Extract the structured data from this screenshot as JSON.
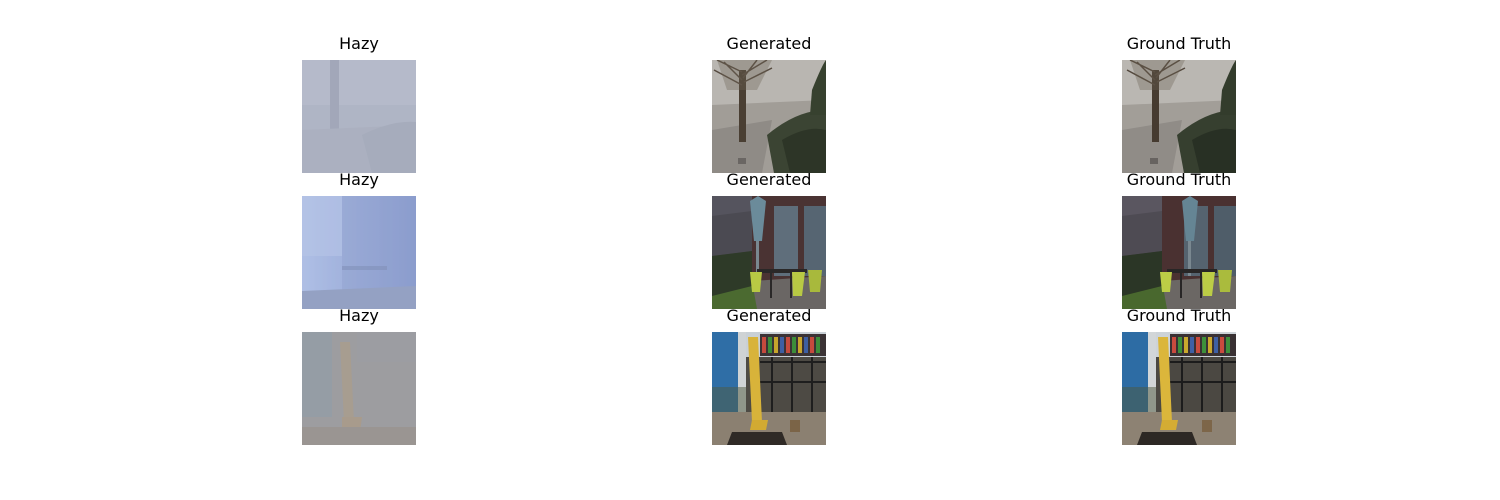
{
  "columns": [
    "Hazy",
    "Generated",
    "Ground Truth"
  ],
  "rows": [
    {
      "scene": "tree-courtyard",
      "panels": [
        {
          "title": "Hazy",
          "variant": "hazy"
        },
        {
          "title": "Generated",
          "variant": "clear"
        },
        {
          "title": "Ground Truth",
          "variant": "clear"
        }
      ]
    },
    {
      "scene": "patio-table",
      "panels": [
        {
          "title": "Hazy",
          "variant": "hazy"
        },
        {
          "title": "Generated",
          "variant": "clear"
        },
        {
          "title": "Ground Truth",
          "variant": "clear"
        }
      ]
    },
    {
      "scene": "playground-slide",
      "panels": [
        {
          "title": "Hazy",
          "variant": "hazy"
        },
        {
          "title": "Generated",
          "variant": "clear"
        },
        {
          "title": "Ground Truth",
          "variant": "clear"
        }
      ]
    }
  ],
  "colors": {
    "haze_tree": "#a6acbc",
    "haze_patio": "#8e9fcc",
    "haze_playground": "#9a9a9c"
  }
}
